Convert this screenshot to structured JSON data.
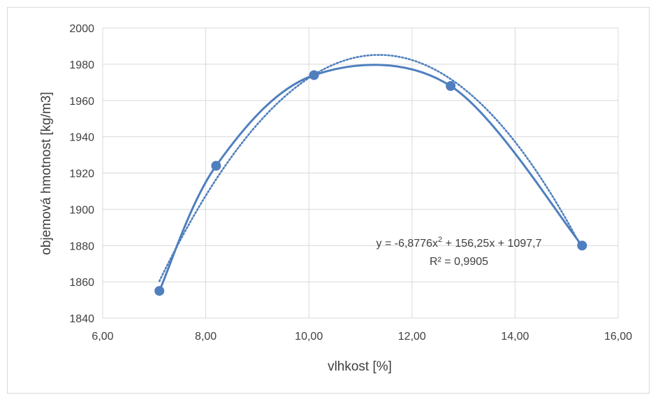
{
  "chart_data": {
    "type": "scatter",
    "title": "",
    "xlabel": "vlhkost [%]",
    "ylabel": "objemová hmotnost [kg/m3]",
    "xlim": [
      6,
      16
    ],
    "ylim": [
      1840,
      2000
    ],
    "x_ticks": [
      "6,00",
      "8,00",
      "10,00",
      "12,00",
      "14,00",
      "16,00"
    ],
    "y_ticks": [
      "1840",
      "1860",
      "1880",
      "1900",
      "1920",
      "1940",
      "1960",
      "1980",
      "2000"
    ],
    "grid": true,
    "series": [
      {
        "x": [
          7.1,
          8.2,
          10.1,
          12.75,
          15.3
        ],
        "y": [
          1855,
          1924,
          1974,
          1968,
          1880
        ],
        "color": "#4f7fbe",
        "line": "smooth",
        "marker": "circle"
      }
    ],
    "trendline": {
      "type": "polynomial",
      "coefficients": [
        -6.8776,
        156.25,
        1097.7
      ],
      "style": "dotted",
      "color": "#4f7fbe",
      "equation_parts": [
        "y = -6,8776x",
        "2",
        " + 156,25x + 1097,7"
      ],
      "r2_label": "R² = 0,9905"
    }
  }
}
